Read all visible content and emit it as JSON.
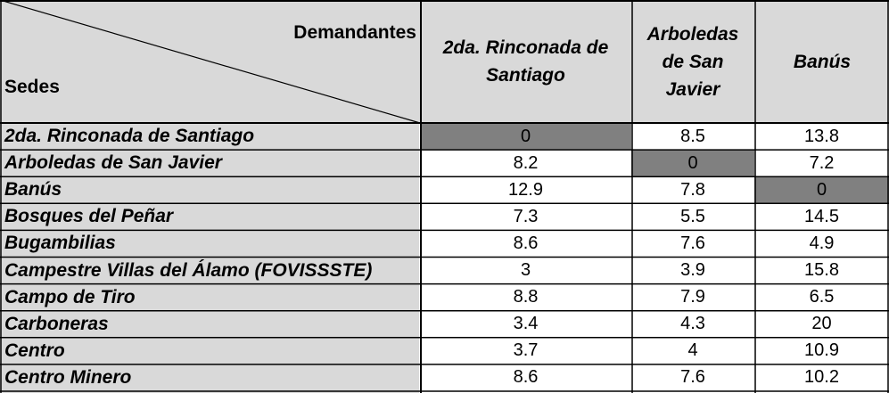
{
  "table": {
    "corner": {
      "demandantes": "Demandantes",
      "sedes": "Sedes"
    },
    "columns": [
      "2da. Rinconada de Santiago",
      "Arboledas de San Javier",
      "Banús"
    ],
    "rows": [
      {
        "label": "2da. Rinconada de Santiago",
        "values": [
          "0",
          "8.5",
          "13.8"
        ],
        "self": 0
      },
      {
        "label": "Arboledas de San Javier",
        "values": [
          "8.2",
          "0",
          "7.2"
        ],
        "self": 1
      },
      {
        "label": "Banús",
        "values": [
          "12.9",
          "7.8",
          "0"
        ],
        "self": 2
      },
      {
        "label": "Bosques del Peñar",
        "values": [
          "7.3",
          "5.5",
          "14.5"
        ],
        "self": -1
      },
      {
        "label": "Bugambilias",
        "values": [
          "8.6",
          "7.6",
          "4.9"
        ],
        "self": -1
      },
      {
        "label": "Campestre Villas del Álamo (FOVISSSTE)",
        "values": [
          "3",
          "3.9",
          "15.8"
        ],
        "self": -1
      },
      {
        "label": "Campo de Tiro",
        "values": [
          "8.8",
          "7.9",
          "6.5"
        ],
        "self": -1
      },
      {
        "label": "Carboneras",
        "values": [
          "3.4",
          "4.3",
          "20"
        ],
        "self": -1
      },
      {
        "label": "Centro",
        "values": [
          "3.7",
          "4",
          "10.9"
        ],
        "self": -1
      },
      {
        "label": "Centro Minero",
        "values": [
          "8.6",
          "7.6",
          "10.2"
        ],
        "self": -1
      }
    ],
    "colors": {
      "header_bg": "#d9d9d9",
      "diagonal_cell_bg": "#808080",
      "grid": "#000000"
    }
  }
}
